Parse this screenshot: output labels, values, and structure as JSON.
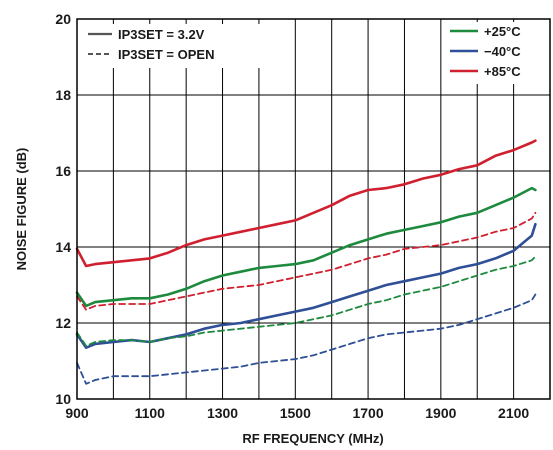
{
  "chart_data": {
    "type": "line",
    "xlabel": "RF FREQUENCY (MHz)",
    "ylabel": "NOISE FIGURE (dB)",
    "xlim": [
      900,
      2200
    ],
    "ylim": [
      10,
      20
    ],
    "x_ticks": [
      900,
      1100,
      1300,
      1500,
      1700,
      1900,
      2100
    ],
    "x_tick_labels": [
      "900",
      "1100",
      "1300",
      "1500",
      "1700",
      "1900",
      "2100"
    ],
    "y_ticks": [
      10,
      12,
      14,
      16,
      18,
      20
    ],
    "y_tick_labels": [
      "10",
      "12",
      "14",
      "16",
      "18",
      "20"
    ],
    "grid": true,
    "legend_linestyle": {
      "placement": "top-left",
      "entries": [
        {
          "label": "IP3SET = 3.2V",
          "dash": "solid"
        },
        {
          "label": "IP3SET = OPEN",
          "dash": "dashed"
        }
      ]
    },
    "legend_temperature": {
      "placement": "top-right",
      "entries": [
        {
          "label": "+25°C",
          "color": "#1e8a3e"
        },
        {
          "label": "−40°C",
          "color": "#2f4f96"
        },
        {
          "label": "+85°C",
          "color": "#d0202f"
        }
      ]
    },
    "colors": {
      "plus25": "#1e8a3e",
      "minus40": "#2f4f96",
      "plus85": "#d0202f"
    },
    "x": [
      900,
      925,
      950,
      1000,
      1050,
      1100,
      1150,
      1200,
      1250,
      1300,
      1350,
      1400,
      1450,
      1500,
      1550,
      1600,
      1650,
      1700,
      1750,
      1800,
      1850,
      1900,
      1950,
      2000,
      2050,
      2100,
      2150,
      2160
    ],
    "series": [
      {
        "name": "+85°C",
        "temp": "plus85",
        "setting": "IP3SET = 3.2V",
        "dash": "solid",
        "values": [
          13.95,
          13.5,
          13.55,
          13.6,
          13.65,
          13.7,
          13.85,
          14.05,
          14.2,
          14.3,
          14.4,
          14.5,
          14.6,
          14.7,
          14.9,
          15.1,
          15.35,
          15.5,
          15.55,
          15.65,
          15.8,
          15.9,
          16.05,
          16.15,
          16.4,
          16.55,
          16.75,
          16.8
        ]
      },
      {
        "name": "+25°C",
        "temp": "plus25",
        "setting": "IP3SET = 3.2V",
        "dash": "solid",
        "values": [
          12.8,
          12.45,
          12.55,
          12.6,
          12.65,
          12.65,
          12.75,
          12.9,
          13.1,
          13.25,
          13.35,
          13.45,
          13.5,
          13.55,
          13.65,
          13.85,
          14.05,
          14.2,
          14.35,
          14.45,
          14.55,
          14.65,
          14.8,
          14.9,
          15.1,
          15.3,
          15.55,
          15.5
        ]
      },
      {
        "name": "+85°C",
        "temp": "plus85",
        "setting": "IP3SET = OPEN",
        "dash": "dashed",
        "values": [
          12.7,
          12.35,
          12.45,
          12.5,
          12.5,
          12.5,
          12.6,
          12.7,
          12.8,
          12.9,
          12.95,
          13.0,
          13.1,
          13.2,
          13.3,
          13.4,
          13.55,
          13.7,
          13.8,
          13.95,
          14.0,
          14.05,
          14.15,
          14.25,
          14.4,
          14.5,
          14.75,
          14.9
        ]
      },
      {
        "name": "−40°C",
        "temp": "minus40",
        "setting": "IP3SET = 3.2V",
        "dash": "solid",
        "values": [
          11.7,
          11.35,
          11.45,
          11.5,
          11.55,
          11.5,
          11.6,
          11.7,
          11.85,
          11.95,
          12.0,
          12.1,
          12.2,
          12.3,
          12.4,
          12.55,
          12.7,
          12.85,
          13.0,
          13.1,
          13.2,
          13.3,
          13.45,
          13.55,
          13.7,
          13.9,
          14.3,
          14.6
        ]
      },
      {
        "name": "+25°C",
        "temp": "plus25",
        "setting": "IP3SET = OPEN",
        "dash": "dashed",
        "values": [
          11.75,
          11.4,
          11.5,
          11.55,
          11.55,
          11.5,
          11.6,
          11.65,
          11.75,
          11.8,
          11.85,
          11.9,
          11.95,
          12.0,
          12.1,
          12.2,
          12.35,
          12.5,
          12.6,
          12.75,
          12.85,
          12.95,
          13.1,
          13.25,
          13.4,
          13.5,
          13.65,
          13.75
        ]
      },
      {
        "name": "−40°C",
        "temp": "minus40",
        "setting": "IP3SET = OPEN",
        "dash": "dashed",
        "values": [
          10.95,
          10.4,
          10.5,
          10.6,
          10.6,
          10.6,
          10.65,
          10.7,
          10.75,
          10.8,
          10.85,
          10.95,
          11.0,
          11.05,
          11.15,
          11.3,
          11.45,
          11.6,
          11.7,
          11.75,
          11.8,
          11.85,
          11.95,
          12.1,
          12.25,
          12.4,
          12.6,
          12.75
        ]
      }
    ]
  }
}
